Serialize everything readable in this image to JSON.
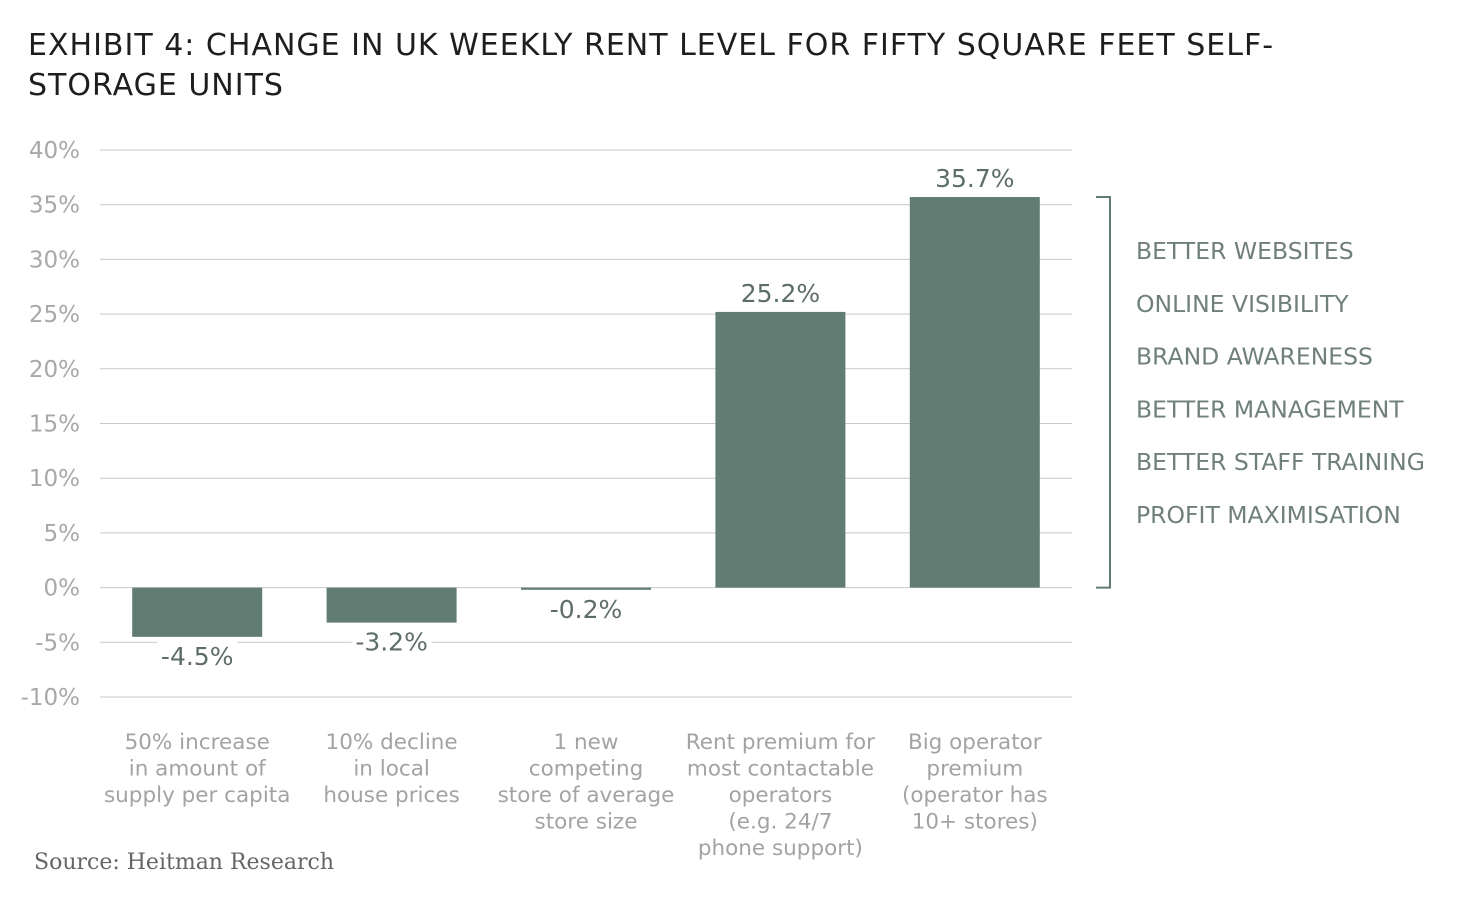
{
  "title": "EXHIBIT 4: CHANGE IN UK WEEKLY RENT LEVEL FOR FIFTY SQUARE FEET SELF-STORAGE UNITS",
  "source": "Source: Heitman Research",
  "colors": {
    "bar": "#617c72",
    "value_label": "#5d6e67",
    "grid": "#c9c9c9",
    "tick_label": "#a8a8a8",
    "category_label": "#a3a3a3",
    "bracket": "#617c72",
    "factor_label": "#6f7f79"
  },
  "chart_data": {
    "type": "bar",
    "title": "EXHIBIT 4: CHANGE IN UK WEEKLY RENT LEVEL FOR FIFTY SQUARE FEET SELF-STORAGE UNITS",
    "xlabel": "",
    "ylabel": "",
    "ylim": [
      -10,
      40
    ],
    "grid": true,
    "yticks": [
      -10,
      -5,
      0,
      5,
      10,
      15,
      20,
      25,
      30,
      35,
      40
    ],
    "ytick_labels": [
      "-10%",
      "-5%",
      "0%",
      "5%",
      "10%",
      "15%",
      "20%",
      "25%",
      "30%",
      "35%",
      "40%"
    ],
    "categories": [
      [
        "50% increase",
        "in amount of",
        "supply per capita"
      ],
      [
        "10% decline",
        "in local",
        "house prices"
      ],
      [
        "1 new",
        "competing",
        "store of average",
        "store size"
      ],
      [
        "Rent premium for",
        "most contactable",
        "operators",
        "(e.g. 24/7",
        "phone support)"
      ],
      [
        "Big operator",
        "premium",
        "(operator has",
        "10+ stores)"
      ]
    ],
    "values": [
      -4.5,
      -3.2,
      -0.2,
      25.2,
      35.7
    ],
    "value_labels": [
      "-4.5%",
      "-3.2%",
      "-0.2%",
      "25.2%",
      "35.7%"
    ],
    "bracket": {
      "from": 0,
      "to": 35.7,
      "labels": [
        "BETTER WEBSITES",
        "ONLINE VISIBILITY",
        "BRAND AWARENESS",
        "BETTER MANAGEMENT",
        "BETTER STAFF TRAINING",
        "PROFIT MAXIMISATION"
      ]
    }
  }
}
